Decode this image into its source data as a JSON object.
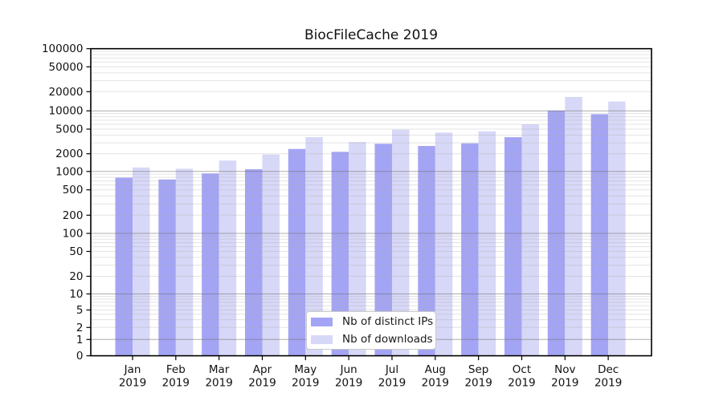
{
  "chart_data": {
    "type": "bar",
    "title": "BiocFileCache 2019",
    "categories": [
      "Jan",
      "Feb",
      "Mar",
      "Apr",
      "May",
      "Jun",
      "Jul",
      "Aug",
      "Sep",
      "Oct",
      "Nov",
      "Dec"
    ],
    "x_sublabel": "2019",
    "yscale": "log-like with zero baseline",
    "ylim": [
      0,
      100000
    ],
    "ytick_values": [
      0,
      1,
      2,
      5,
      10,
      20,
      50,
      100,
      200,
      500,
      1000,
      2000,
      5000,
      10000,
      20000,
      50000,
      100000
    ],
    "grid": {
      "horizontal_major": true,
      "horizontal_log_minors": true,
      "legend_position": "inside-bottom-center"
    },
    "series": [
      {
        "name": "Nb of distinct IPs",
        "color": "#a4a4f4",
        "values": [
          790,
          740,
          930,
          1090,
          2390,
          2150,
          2900,
          2670,
          2950,
          3700,
          10100,
          8800
        ]
      },
      {
        "name": "Nb of downloads",
        "color": "#d7d7f7",
        "values": [
          1170,
          1110,
          1530,
          1940,
          3700,
          3100,
          4900,
          4400,
          4600,
          6000,
          16500,
          14000
        ]
      }
    ]
  }
}
